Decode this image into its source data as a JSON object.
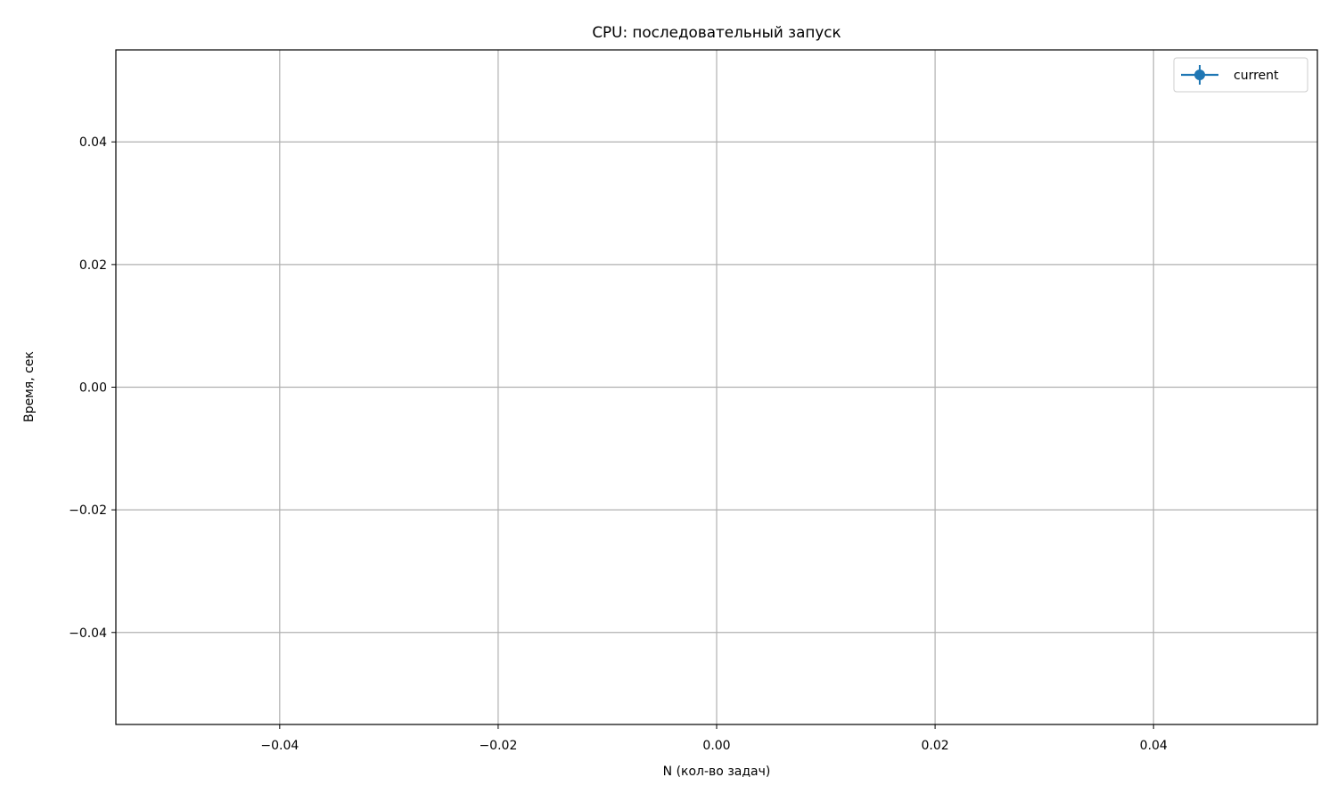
{
  "chart_data": {
    "type": "line",
    "title": "CPU: последовательный запуск",
    "xlabel": "N (кол-во задач)",
    "ylabel": "Время, сек",
    "xlim": [
      -0.055,
      0.055
    ],
    "ylim": [
      -0.055,
      0.055
    ],
    "x_ticks": [
      -0.04,
      -0.02,
      0.0,
      0.02,
      0.04
    ],
    "x_tick_labels": [
      "−0.04",
      "−0.02",
      "0.00",
      "0.02",
      "0.04"
    ],
    "y_ticks": [
      -0.04,
      -0.02,
      0.0,
      0.02,
      0.04
    ],
    "y_tick_labels": [
      "−0.04",
      "−0.02",
      "0.00",
      "0.02",
      "0.04"
    ],
    "grid": true,
    "legend_position": "top-right",
    "series": [
      {
        "name": "current",
        "color": "#1f77b4",
        "marker": "circle",
        "error_bars": true,
        "x": [],
        "y": []
      }
    ]
  }
}
